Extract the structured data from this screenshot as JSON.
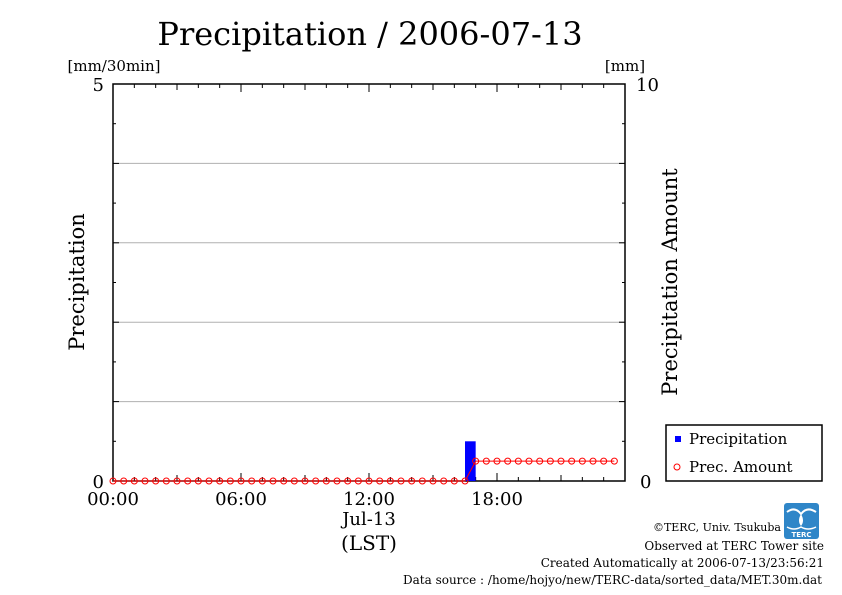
{
  "chart_data": {
    "type": "bar",
    "title": "Precipitation / 2006-07-13",
    "ylabel": "Precipitation",
    "ylabel_right": "Precipitation Amount",
    "yunit": "[mm/30min]",
    "yunit_right": "[mm]",
    "ylim": [
      0,
      5
    ],
    "ylim_right": [
      0,
      10
    ],
    "y_ticks": [
      "0",
      "5"
    ],
    "y_ticks_right": [
      "0",
      "10"
    ],
    "xlim_hours": [
      0,
      24
    ],
    "x_ticks": [
      {
        "hour": 0,
        "label": "00:00"
      },
      {
        "hour": 6,
        "label": "06:00"
      },
      {
        "hour": 12,
        "label": "12:00"
      },
      {
        "hour": 18,
        "label": "18:00"
      }
    ],
    "x_date_label": "Jul-13",
    "x_tz_label": "(LST)",
    "grid": true,
    "legend_position": "bottom-right-outside",
    "series": [
      {
        "name": "Precipitation",
        "kind": "bar",
        "color": "#0000ff",
        "points": [
          {
            "hour": 16.5,
            "value": 0.5
          }
        ]
      },
      {
        "name": "Prec. Amount",
        "kind": "line-circle",
        "color": "#ff0000",
        "start_hour": 0,
        "step_hours": 0.5,
        "values": [
          0,
          0,
          0,
          0,
          0,
          0,
          0,
          0,
          0,
          0,
          0,
          0,
          0,
          0,
          0,
          0,
          0,
          0,
          0,
          0,
          0,
          0,
          0,
          0,
          0,
          0,
          0,
          0,
          0,
          0,
          0,
          0,
          0,
          0,
          0.5,
          0.5,
          0.5,
          0.5,
          0.5,
          0.5,
          0.5,
          0.5,
          0.5,
          0.5,
          0.5,
          0.5,
          0.5,
          0.5
        ]
      }
    ]
  },
  "footer": {
    "copyright": "©TERC, Univ. Tsukuba",
    "observed": "Observed at TERC Tower site",
    "created": "Created Automatically at 2006-07-13/23:56:21",
    "source": "Data source : /home/hojyo/new/TERC-data/sorted_data/MET.30m.dat",
    "logo_text": "TERC"
  }
}
